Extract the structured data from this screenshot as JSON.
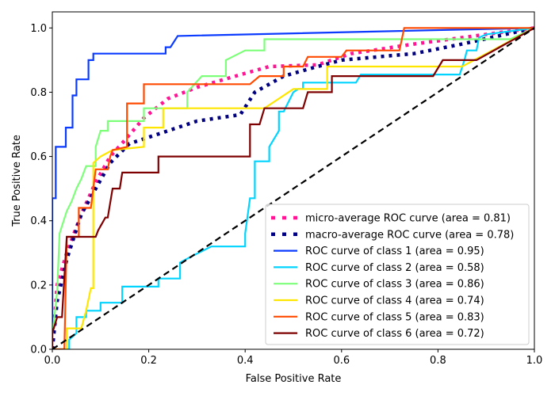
{
  "chart_data": {
    "type": "line",
    "title": "",
    "xlabel": "False Positive Rate",
    "ylabel": "True Positive Rate",
    "xlim": [
      0.0,
      1.0
    ],
    "ylim": [
      0.0,
      1.05
    ],
    "xticks": [
      "0.0",
      "0.2",
      "0.4",
      "0.6",
      "0.8",
      "1.0"
    ],
    "yticks": [
      "0.0",
      "0.2",
      "0.4",
      "0.6",
      "0.8",
      "1.0"
    ],
    "grid": false,
    "legend_position": "lower-right",
    "series": [
      {
        "name": "micro-average ROC curve (area = 0.81)",
        "color": "#ff1493",
        "style": "dotted",
        "x": [
          0,
          0.01,
          0.03,
          0.06,
          0.09,
          0.12,
          0.15,
          0.19,
          0.24,
          0.3,
          0.38,
          0.45,
          0.55,
          0.62,
          0.75,
          0.85,
          1
        ],
        "y": [
          0,
          0.2,
          0.3,
          0.42,
          0.52,
          0.6,
          0.65,
          0.72,
          0.78,
          0.815,
          0.85,
          0.88,
          0.885,
          0.92,
          0.95,
          0.97,
          1
        ]
      },
      {
        "name": "macro-average ROC curve (area = 0.78)",
        "color": "#000080",
        "style": "dotted",
        "x": [
          0,
          0.01,
          0.03,
          0.06,
          0.09,
          0.12,
          0.16,
          0.22,
          0.3,
          0.39,
          0.42,
          0.48,
          0.55,
          0.6,
          0.75,
          0.85,
          1
        ],
        "y": [
          0,
          0.15,
          0.28,
          0.42,
          0.5,
          0.58,
          0.64,
          0.67,
          0.71,
          0.73,
          0.8,
          0.85,
          0.88,
          0.9,
          0.92,
          0.95,
          1
        ]
      },
      {
        "name": "ROC curve of class 1 (area = 0.95)",
        "color": "#0a3bff",
        "style": "solid",
        "x": [
          0,
          0,
          0.007,
          0.007,
          0.028,
          0.028,
          0.042,
          0.042,
          0.05,
          0.05,
          0.075,
          0.075,
          0.085,
          0.085,
          0.235,
          0.235,
          0.245,
          0.26,
          1
        ],
        "y": [
          0,
          0.47,
          0.47,
          0.63,
          0.63,
          0.69,
          0.69,
          0.79,
          0.79,
          0.84,
          0.84,
          0.9,
          0.9,
          0.92,
          0.92,
          0.94,
          0.94,
          0.975,
          1
        ]
      },
      {
        "name": "ROC curve of class 2 (area = 0.58)",
        "color": "#00d4ff",
        "style": "solid",
        "x": [
          0,
          0.035,
          0.035,
          0.05,
          0.05,
          0.07,
          0.07,
          0.1,
          0.1,
          0.145,
          0.145,
          0.22,
          0.22,
          0.265,
          0.265,
          0.29,
          0.33,
          0.4,
          0.4,
          0.41,
          0.42,
          0.42,
          0.45,
          0.45,
          0.47,
          0.47,
          0.48,
          0.49,
          0.5,
          0.51,
          0.52,
          0.52,
          0.63,
          0.64,
          0.845,
          0.855,
          0.86,
          0.88,
          0.885,
          0.9,
          1
        ],
        "y": [
          0,
          0,
          0.03,
          0.05,
          0.1,
          0.1,
          0.12,
          0.12,
          0.145,
          0.145,
          0.195,
          0.195,
          0.22,
          0.22,
          0.27,
          0.29,
          0.32,
          0.32,
          0.36,
          0.47,
          0.47,
          0.585,
          0.585,
          0.63,
          0.68,
          0.74,
          0.74,
          0.77,
          0.8,
          0.81,
          0.81,
          0.83,
          0.83,
          0.855,
          0.855,
          0.9,
          0.93,
          0.93,
          0.97,
          0.98,
          1
        ]
      },
      {
        "name": "ROC curve of class 3 (area = 0.86)",
        "color": "#7dff7a",
        "style": "solid",
        "x": [
          0,
          0,
          0.01,
          0.015,
          0.03,
          0.04,
          0.05,
          0.06,
          0.07,
          0.09,
          0.09,
          0.1,
          0.115,
          0.115,
          0.19,
          0.19,
          0.28,
          0.28,
          0.31,
          0.36,
          0.36,
          0.4,
          0.44,
          0.44,
          0.95,
          1
        ],
        "y": [
          0,
          0.04,
          0.18,
          0.36,
          0.43,
          0.46,
          0.5,
          0.53,
          0.57,
          0.57,
          0.63,
          0.68,
          0.68,
          0.71,
          0.71,
          0.75,
          0.75,
          0.8,
          0.85,
          0.85,
          0.9,
          0.93,
          0.93,
          0.965,
          0.965,
          1
        ]
      },
      {
        "name": "ROC curve of class 4 (area = 0.74)",
        "color": "#ffe600",
        "style": "solid",
        "x": [
          0,
          0.03,
          0.03,
          0.06,
          0.07,
          0.08,
          0.085,
          0.085,
          0.1,
          0.125,
          0.19,
          0.19,
          0.23,
          0.23,
          0.44,
          0.5,
          0.57,
          0.57,
          0.85,
          1
        ],
        "y": [
          0,
          0,
          0.065,
          0.065,
          0.12,
          0.19,
          0.19,
          0.58,
          0.6,
          0.62,
          0.63,
          0.69,
          0.69,
          0.75,
          0.75,
          0.81,
          0.81,
          0.88,
          0.88,
          1
        ]
      },
      {
        "name": "ROC curve of class 5 (area = 0.83)",
        "color": "#ff4a00",
        "style": "solid",
        "x": [
          0,
          0.025,
          0.03,
          0.055,
          0.055,
          0.08,
          0.09,
          0.115,
          0.12,
          0.125,
          0.155,
          0.155,
          0.19,
          0.19,
          0.41,
          0.43,
          0.48,
          0.48,
          0.52,
          0.53,
          0.6,
          0.61,
          0.72,
          0.73,
          1
        ],
        "y": [
          0,
          0,
          0.35,
          0.35,
          0.44,
          0.44,
          0.56,
          0.56,
          0.6,
          0.62,
          0.63,
          0.765,
          0.765,
          0.825,
          0.825,
          0.85,
          0.85,
          0.88,
          0.88,
          0.91,
          0.91,
          0.93,
          0.93,
          1,
          1
        ]
      },
      {
        "name": "ROC curve of class 6 (area = 0.72)",
        "color": "#7f0000",
        "style": "solid",
        "x": [
          0,
          0,
          0.01,
          0.02,
          0.03,
          0.09,
          0.095,
          0.11,
          0.115,
          0.125,
          0.14,
          0.145,
          0.22,
          0.22,
          0.41,
          0.41,
          0.43,
          0.44,
          0.52,
          0.53,
          0.58,
          0.58,
          0.79,
          0.81,
          0.88,
          1
        ],
        "y": [
          0,
          0.05,
          0.1,
          0.1,
          0.35,
          0.35,
          0.37,
          0.41,
          0.41,
          0.5,
          0.5,
          0.55,
          0.55,
          0.6,
          0.6,
          0.7,
          0.7,
          0.75,
          0.75,
          0.8,
          0.8,
          0.85,
          0.85,
          0.9,
          0.9,
          1
        ]
      }
    ],
    "reference_line": {
      "x": [
        0,
        1
      ],
      "y": [
        0,
        1
      ],
      "color": "#000000",
      "style": "dashed"
    }
  }
}
